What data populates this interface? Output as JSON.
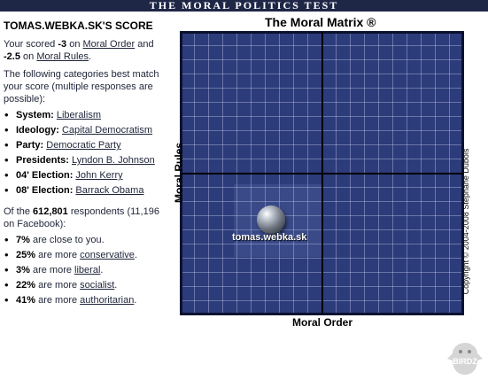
{
  "banner": {
    "title": "THE MORAL POLITICS TEST"
  },
  "score": {
    "title": "TOMAS.WEBKA.SK'S SCORE",
    "intro_pre": "Your scored ",
    "order_value": "-3",
    "intro_on1": " on ",
    "order_link": "Moral Order",
    "intro_and": " and ",
    "rules_value": "-2.5",
    "intro_on2": " on ",
    "rules_link": "Moral Rules",
    "intro_end": "."
  },
  "categories": {
    "intro": "The following categories best match your score (multiple responses are possible):",
    "items": [
      {
        "label": "System:",
        "value": "Liberalism"
      },
      {
        "label": "Ideology:",
        "value": "Capital Democratism"
      },
      {
        "label": "Party:",
        "value": "Democratic Party"
      },
      {
        "label": "Presidents:",
        "value": "Lyndon B. Johnson"
      },
      {
        "label": "04' Election:",
        "value": "John Kerry"
      },
      {
        "label": "08' Election:",
        "value": "Barrack Obama"
      }
    ]
  },
  "respondents": {
    "pre": "Of the ",
    "total": "612,801",
    "post": " respondents (11,196 on Facebook):",
    "stats": [
      {
        "pct": "7%",
        "pre": " are close to you.",
        "link": "",
        "post": ""
      },
      {
        "pct": "25%",
        "pre": " are more ",
        "link": "conservative",
        "post": "."
      },
      {
        "pct": "3%",
        "pre": " are more ",
        "link": "liberal",
        "post": "."
      },
      {
        "pct": "22%",
        "pre": " are more ",
        "link": "socialist",
        "post": "."
      },
      {
        "pct": "41%",
        "pre": " are more ",
        "link": "authoritarian",
        "post": "."
      }
    ]
  },
  "matrix": {
    "title": "The Moral Matrix ®",
    "x_label": "Moral Order",
    "y_label": "Moral Rules",
    "marker_label": "tomas.webka.sk",
    "copyright": "Copyright © 2004-2008 Stephane Dubois"
  },
  "watermark": {
    "text": "BIRDZ"
  },
  "colors": {
    "banner": "#1f2747",
    "matrix_bg": "#2c3b7a"
  }
}
